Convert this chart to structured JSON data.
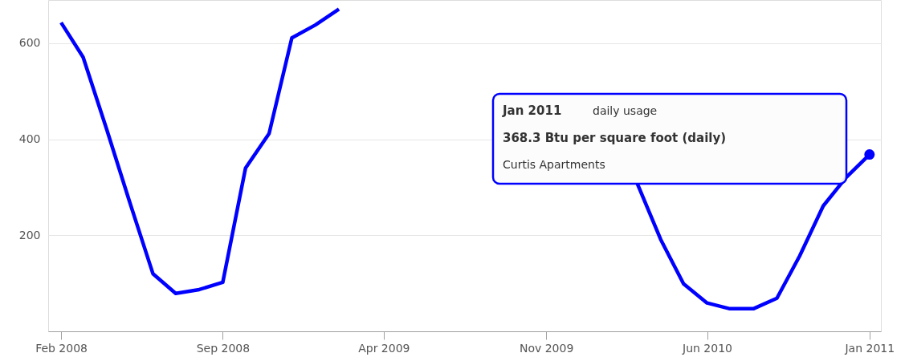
{
  "chart_data": {
    "type": "line",
    "x": [
      "2008-02",
      "2008-03",
      "2008-04",
      "2008-05",
      "2008-06",
      "2008-07",
      "2008-08",
      "2008-09",
      "2008-10",
      "2008-11",
      "2008-12",
      "2009-01",
      "2009-02",
      "2009-03",
      "2009-04",
      "2009-05",
      "2009-06",
      "2009-07",
      "2009-08",
      "2009-09",
      "2009-10",
      "2009-11",
      "2009-12",
      "2010-01",
      "2010-02",
      "2010-03",
      "2010-04",
      "2010-05",
      "2010-06",
      "2010-07",
      "2010-08",
      "2010-09",
      "2010-10",
      "2010-11",
      "2010-12",
      "2011-01"
    ],
    "series": [
      {
        "name": "Curtis Apartments",
        "color": "#0000ff",
        "values": [
          643,
          571,
          421,
          271,
          120,
          79,
          87,
          102,
          340,
          412,
          611,
          638,
          671,
          null,
          null,
          null,
          null,
          null,
          null,
          null,
          null,
          null,
          null,
          null,
          null,
          308,
          191,
          99,
          59,
          47,
          47,
          69,
          157,
          261,
          320,
          368.3
        ]
      },
      {
        "type": "scatter",
        "color": "#0000ff",
        "marker": "circle",
        "x": [
          "2011-01"
        ],
        "values": [
          368.3
        ]
      }
    ],
    "xlim": [
      "2008-01-15",
      "2011-01-16"
    ],
    "xticks": [
      {
        "value": "2008-02",
        "label": "Feb 2008"
      },
      {
        "value": "2008-09",
        "label": "Sep 2008"
      },
      {
        "value": "2009-04",
        "label": "Apr 2009"
      },
      {
        "value": "2009-11",
        "label": "Nov 2009"
      },
      {
        "value": "2010-06",
        "label": "Jun 2010"
      },
      {
        "value": "2011-01",
        "label": "Jan 2011"
      }
    ],
    "ylim": [
      0,
      690
    ],
    "yticks": [
      200,
      400,
      600
    ],
    "grid": "y",
    "marker": "none",
    "line_style": "solid",
    "annotations": [
      "Jan 2011",
      "daily usage",
      "368.3 Btu per square foot (daily)"
    ]
  }
}
